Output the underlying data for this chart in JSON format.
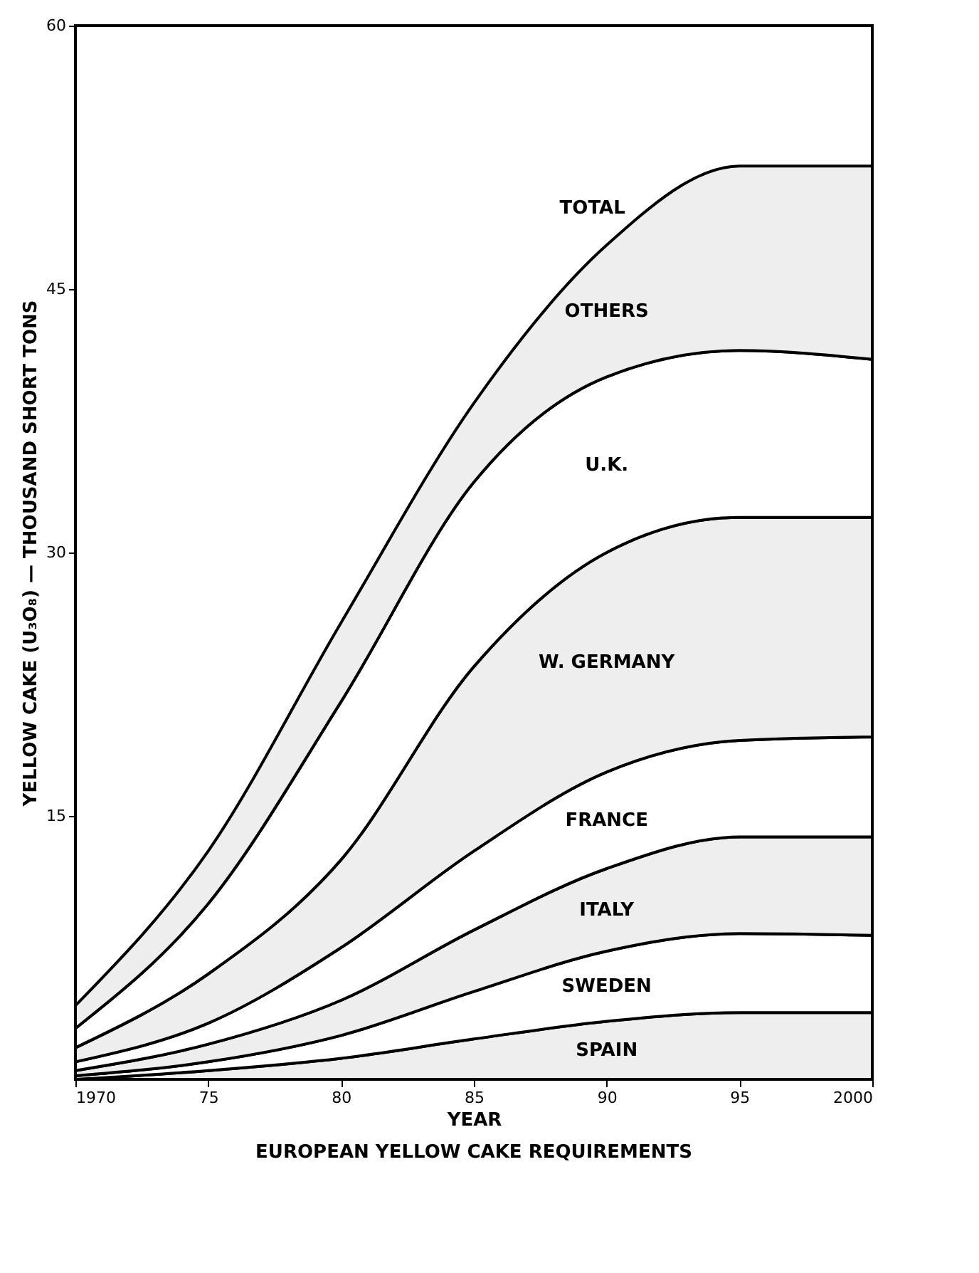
{
  "chart_data": {
    "type": "area",
    "stacked": true,
    "title": "EUROPEAN YELLOW CAKE REQUIREMENTS",
    "xlabel": "YEAR",
    "ylabel": "YELLOW CAKE (U₃O₈) — THOUSAND SHORT TONS",
    "x": [
      1970,
      1975,
      1980,
      1985,
      1990,
      1995,
      2000
    ],
    "series": [
      {
        "name": "SPAIN",
        "color": "#eeeeee",
        "values": [
          0,
          0.5,
          1.2,
          2.3,
          3.3,
          3.8,
          3.8
        ]
      },
      {
        "name": "SWEDEN",
        "color": "#ffffff",
        "values": [
          0.2,
          0.5,
          1.3,
          2.7,
          4.0,
          4.5,
          4.4
        ]
      },
      {
        "name": "ITALY",
        "color": "#eeeeee",
        "values": [
          0.3,
          1.0,
          2.0,
          3.5,
          4.7,
          5.5,
          5.6
        ]
      },
      {
        "name": "FRANCE",
        "color": "#ffffff",
        "values": [
          0.5,
          1.2,
          3.0,
          4.5,
          5.5,
          5.5,
          5.7
        ]
      },
      {
        "name": "W. GERMANY",
        "color": "#eeeeee",
        "values": [
          0.8,
          2.8,
          5.0,
          10.5,
          12.5,
          12.7,
          12.5
        ]
      },
      {
        "name": "U.K.",
        "color": "#ffffff",
        "values": [
          1.1,
          4.0,
          9.0,
          10.5,
          10.0,
          9.5,
          9.0
        ]
      },
      {
        "name": "OTHERS",
        "color": "#eeeeee",
        "values": [
          1.3,
          3.0,
          4.5,
          4.5,
          7.5,
          10.5,
          11.0
        ]
      }
    ],
    "annotations": [
      {
        "text": "TOTAL",
        "x": 1990,
        "y": 47.5
      }
    ],
    "xlim": [
      1970,
      2000
    ],
    "xticks": [
      {
        "value": 1970,
        "label": "1970"
      },
      {
        "value": 1975,
        "label": "75"
      },
      {
        "value": 1980,
        "label": "80"
      },
      {
        "value": 1985,
        "label": "85"
      },
      {
        "value": 1990,
        "label": "90"
      },
      {
        "value": 1995,
        "label": "95"
      },
      {
        "value": 2000,
        "label": "2000"
      }
    ],
    "ylim": [
      0,
      60
    ],
    "yticks": [
      15,
      30,
      45,
      60
    ],
    "grid": false
  }
}
